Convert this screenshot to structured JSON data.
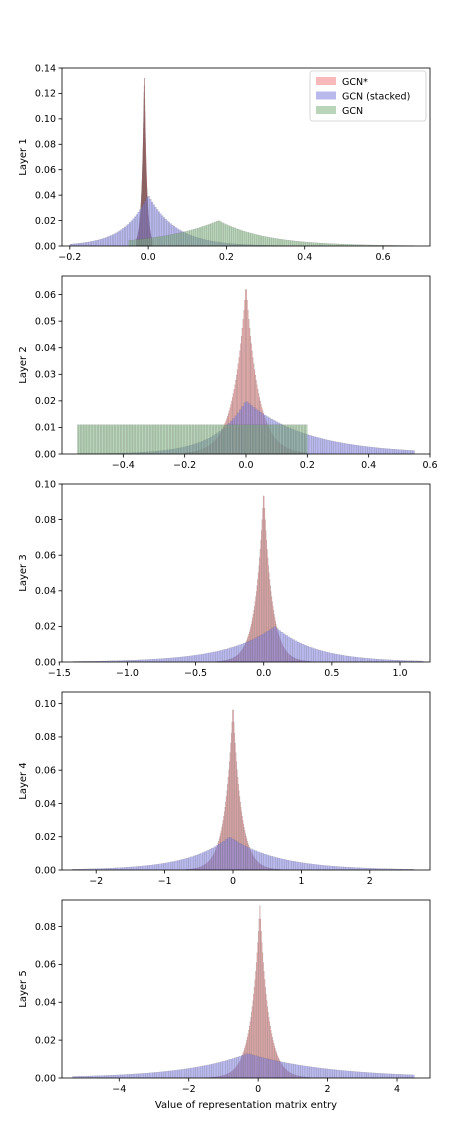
{
  "figure": {
    "xlabel": "Value of representation matrix entry"
  },
  "legend": {
    "placement": "top-right",
    "panel": 0
  },
  "colors": {
    "GCN*": "#f08080",
    "GCN (stacked)": "#8080e0",
    "GCN": "#7fb27f"
  },
  "chart_data": [
    {
      "type": "bar",
      "ylabel": "Layer 1",
      "xlim": [
        -0.22,
        0.72
      ],
      "ylim": [
        0,
        0.14
      ],
      "xticks": [
        "-0.2",
        "0.0",
        "0.2",
        "0.4",
        "0.6"
      ],
      "yticks": [
        "0.00",
        "0.02",
        "0.04",
        "0.06",
        "0.08",
        "0.10",
        "0.12",
        "0.14"
      ],
      "series": [
        {
          "name": "GCN*",
          "dist": "peak",
          "center": -0.01,
          "peak": 0.135,
          "left": 0.006,
          "right": 0.006,
          "min": -0.03,
          "max": 0.01
        },
        {
          "name": "GCN (stacked)",
          "dist": "peak",
          "center": 0.0,
          "peak": 0.04,
          "left": 0.06,
          "right": 0.07,
          "min": -0.2,
          "max": 0.45
        },
        {
          "name": "GCN",
          "dist": "peak",
          "center": 0.18,
          "peak": 0.02,
          "left": 0.15,
          "right": 0.12,
          "min": -0.05,
          "max": 0.68
        }
      ]
    },
    {
      "type": "bar",
      "ylabel": "Layer 2",
      "xlim": [
        -0.6,
        0.6
      ],
      "ylim": [
        0,
        0.067
      ],
      "xticks": [
        "-0.4",
        "-0.2",
        "0.0",
        "0.2",
        "0.4",
        "0.6"
      ],
      "yticks": [
        "0.00",
        "0.01",
        "0.02",
        "0.03",
        "0.04",
        "0.05",
        "0.06"
      ],
      "series": [
        {
          "name": "GCN*",
          "dist": "peak",
          "center": 0.0,
          "peak": 0.064,
          "left": 0.04,
          "right": 0.04,
          "min": -0.2,
          "max": 0.2
        },
        {
          "name": "GCN (stacked)",
          "dist": "peak",
          "center": 0.0,
          "peak": 0.02,
          "left": 0.1,
          "right": 0.2,
          "min": -0.55,
          "max": 0.55
        },
        {
          "name": "GCN",
          "dist": "uniform",
          "min": -0.55,
          "max": 0.2,
          "peak": 0.011
        }
      ]
    },
    {
      "type": "bar",
      "ylabel": "Layer 3",
      "xlim": [
        -1.48,
        1.22
      ],
      "ylim": [
        0,
        0.1
      ],
      "xticks": [
        "-1.5",
        "-1.0",
        "-0.5",
        "0.0",
        "0.5",
        "1.0"
      ],
      "yticks": [
        "0.00",
        "0.02",
        "0.04",
        "0.06",
        "0.08",
        "0.10"
      ],
      "series": [
        {
          "name": "GCN*",
          "dist": "peak",
          "center": 0.0,
          "peak": 0.097,
          "left": 0.06,
          "right": 0.06,
          "min": -0.35,
          "max": 0.35
        },
        {
          "name": "GCN (stacked)",
          "dist": "peak",
          "center": 0.08,
          "peak": 0.02,
          "left": 0.35,
          "right": 0.3,
          "min": -1.4,
          "max": 1.17
        }
      ]
    },
    {
      "type": "bar",
      "ylabel": "Layer 4",
      "xlim": [
        -2.5,
        2.88
      ],
      "ylim": [
        0,
        0.107
      ],
      "xticks": [
        "-2",
        "-1",
        "0",
        "1",
        "2"
      ],
      "yticks": [
        "0.00",
        "0.02",
        "0.04",
        "0.06",
        "0.08",
        "0.10"
      ],
      "series": [
        {
          "name": "GCN*",
          "dist": "peak",
          "center": 0.0,
          "peak": 0.1,
          "left": 0.12,
          "right": 0.12,
          "min": -0.7,
          "max": 0.7
        },
        {
          "name": "GCN (stacked)",
          "dist": "peak",
          "center": -0.05,
          "peak": 0.02,
          "left": 0.6,
          "right": 0.7,
          "min": -2.35,
          "max": 2.65
        }
      ]
    },
    {
      "type": "bar",
      "ylabel": "Layer 5",
      "xlim": [
        -5.65,
        4.95
      ],
      "ylim": [
        0,
        0.094
      ],
      "xticks": [
        "-4",
        "-2",
        "0",
        "2",
        "4"
      ],
      "yticks": [
        "0.00",
        "0.02",
        "0.04",
        "0.06",
        "0.08"
      ],
      "series": [
        {
          "name": "GCN*",
          "dist": "peak",
          "center": 0.05,
          "peak": 0.091,
          "left": 0.25,
          "right": 0.25,
          "min": -1.5,
          "max": 1.5
        },
        {
          "name": "GCN (stacked)",
          "dist": "peak",
          "center": -0.3,
          "peak": 0.013,
          "left": 1.8,
          "right": 2.3,
          "min": -5.35,
          "max": 4.5
        }
      ]
    }
  ]
}
